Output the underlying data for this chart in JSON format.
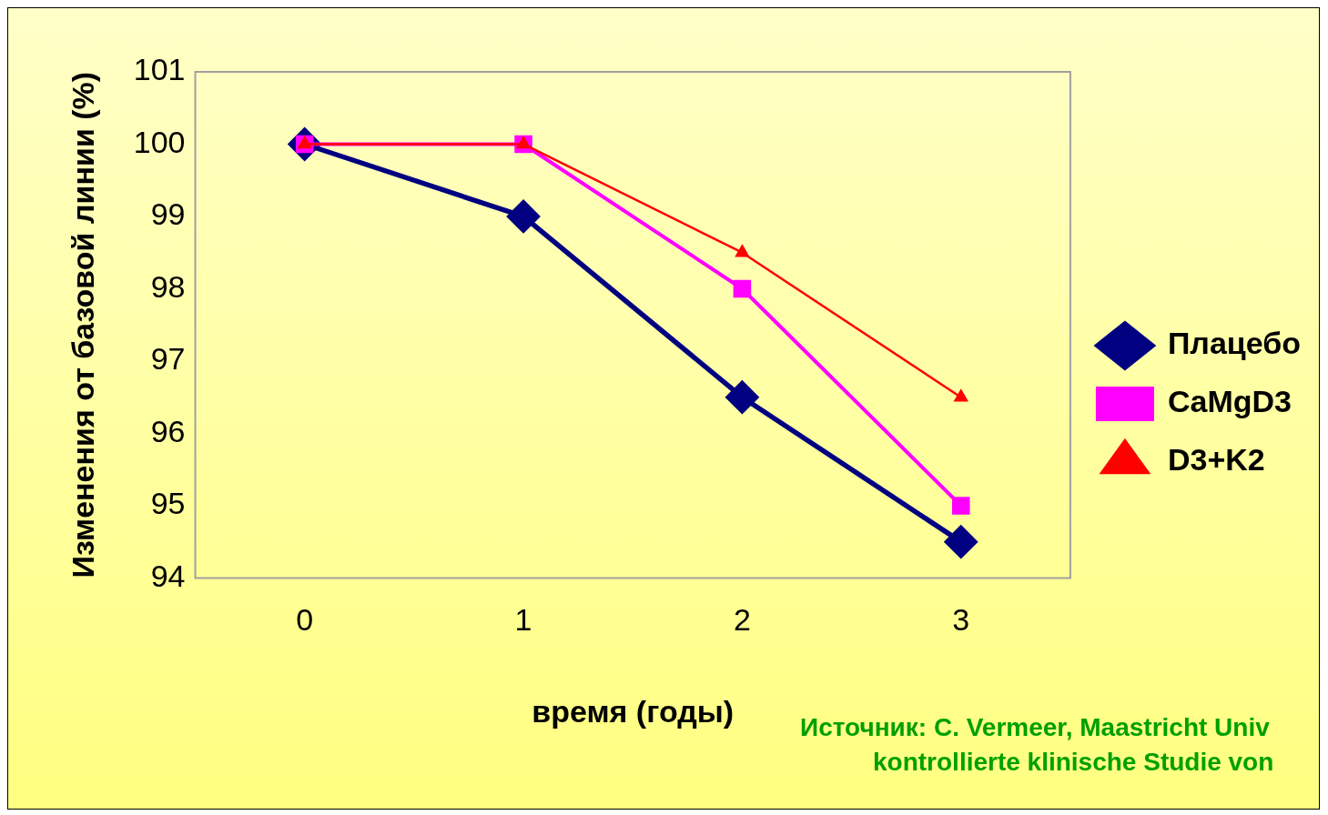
{
  "chart_data": {
    "type": "line",
    "xlabel": "время (годы)",
    "ylabel": "Изменения от базовой линии (%)",
    "categories": [
      "0",
      "1",
      "2",
      "3"
    ],
    "series": [
      {
        "name": "Плацебо",
        "color": "#000080",
        "marker": "diamond",
        "values": [
          100,
          99,
          96.5,
          94.5
        ]
      },
      {
        "name": "CaMgD3",
        "color": "#ff00ff",
        "marker": "square",
        "values": [
          100,
          100,
          98,
          95
        ]
      },
      {
        "name": "D3+K2",
        "color": "#ff0000",
        "marker": "triangle",
        "values": [
          100,
          100,
          98.5,
          96.5
        ]
      }
    ],
    "ylim": [
      94,
      101
    ],
    "yticks": [
      94,
      95,
      96,
      97,
      98,
      99,
      100,
      101
    ],
    "grid": false,
    "legend": "right",
    "annotations": [
      "Источник: C. Vermeer, Maastricht Univ",
      "kontrollierte klinische Studie von"
    ]
  }
}
